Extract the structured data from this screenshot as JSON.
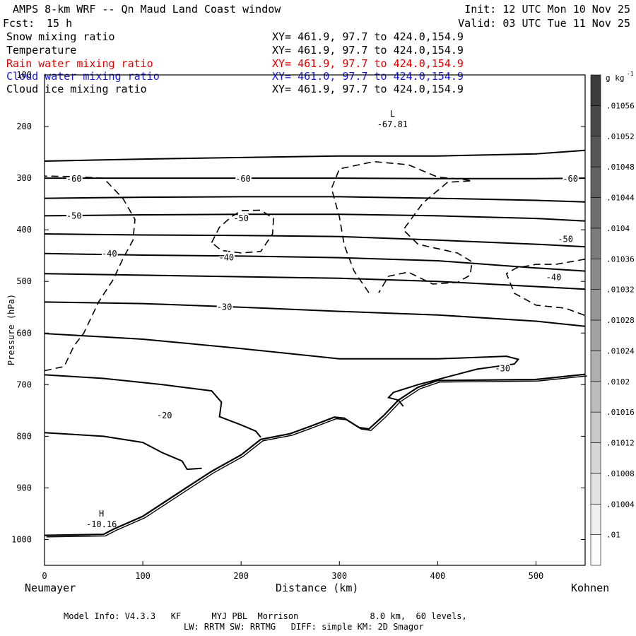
{
  "header": {
    "title": "AMPS 8-km WRF -- Qn Maud Land Coast window",
    "fcst_label": "Fcst:",
    "fcst_value": "15 h",
    "init": "Init: 12 UTC Mon 10 Nov 25",
    "valid": "Valid: 03 UTC Tue 11 Nov 25"
  },
  "fields": [
    {
      "name": "Snow mixing ratio",
      "xy": "XY= 461.9, 97.7 to 424.0,154.9",
      "color": "#000000"
    },
    {
      "name": "Temperature",
      "xy": "XY= 461.9, 97.7 to 424.0,154.9",
      "color": "#000000"
    },
    {
      "name": "Rain water mixing ratio",
      "xy": "XY= 461.9, 97.7 to 424.0,154.9",
      "color": "#e00000"
    },
    {
      "name": "Cloud water mixing ratio",
      "xy": "XY= 461.0, 97.7 to 424.0,154.9",
      "color": "#1a1adc"
    },
    {
      "name": "Cloud ice mixing ratio",
      "xy": "XY= 461.9, 97.7 to 424.0,154.9",
      "color": "#000000"
    }
  ],
  "footer": {
    "line1": "Model Info: V4.3.3   KF      MYJ PBL  Morrison              8.0 km,  60 levels,",
    "line2": "LW: RRTM SW: RRTMG   DIFF: simple KM: 2D Smagor"
  },
  "chart_data": {
    "type": "line",
    "xlabel": "Distance (km)",
    "ylabel": "Pressure (hPa)",
    "xlim": [
      0,
      550
    ],
    "ylim": [
      1050,
      100
    ],
    "x_ticks": [
      0,
      100,
      200,
      300,
      400,
      500
    ],
    "y_ticks": [
      100,
      200,
      300,
      400,
      500,
      600,
      700,
      800,
      900,
      1000
    ],
    "x_left_label": "Neumayer",
    "x_right_label": "Kohnen",
    "colorbar": {
      "unit": "g kg",
      "unit_exp": "-1",
      "labels": [
        ".01",
        ".01004",
        ".01008",
        ".01012",
        ".01016",
        ".0102",
        ".01024",
        ".01028",
        ".01032",
        ".01036",
        ".0104",
        ".01044",
        ".01048",
        ".01052",
        ".01056"
      ]
    },
    "temperature_contours": [
      {
        "level": -60,
        "points": [
          [
            0,
            267
          ],
          [
            100,
            263
          ],
          [
            200,
            260
          ],
          [
            300,
            257
          ],
          [
            400,
            257
          ],
          [
            500,
            253
          ],
          [
            550,
            246
          ]
        ]
      },
      {
        "level": -60,
        "points": [
          [
            0,
            300
          ],
          [
            100,
            300
          ],
          [
            200,
            300
          ],
          [
            300,
            300
          ],
          [
            400,
            301
          ],
          [
            500,
            301
          ],
          [
            550,
            300
          ]
        ]
      },
      {
        "level": -60,
        "points": [
          [
            0,
            339
          ],
          [
            100,
            337
          ],
          [
            200,
            336
          ],
          [
            300,
            336
          ],
          [
            400,
            339
          ],
          [
            500,
            343
          ],
          [
            550,
            346
          ]
        ]
      },
      {
        "level": -50,
        "points": [
          [
            0,
            373
          ],
          [
            100,
            371
          ],
          [
            200,
            370
          ],
          [
            300,
            370
          ],
          [
            400,
            373
          ],
          [
            500,
            378
          ],
          [
            550,
            383
          ]
        ]
      },
      {
        "level": -50,
        "points": [
          [
            0,
            408
          ],
          [
            100,
            410
          ],
          [
            200,
            411
          ],
          [
            300,
            413
          ],
          [
            400,
            420
          ],
          [
            500,
            428
          ],
          [
            550,
            433
          ]
        ]
      },
      {
        "level": -40,
        "points": [
          [
            0,
            446
          ],
          [
            100,
            449
          ],
          [
            200,
            451
          ],
          [
            300,
            454
          ],
          [
            400,
            460
          ],
          [
            500,
            474
          ],
          [
            550,
            480
          ]
        ]
      },
      {
        "level": -40,
        "points": [
          [
            0,
            485
          ],
          [
            100,
            488
          ],
          [
            200,
            491
          ],
          [
            300,
            494
          ],
          [
            400,
            500
          ],
          [
            500,
            510
          ],
          [
            550,
            515
          ]
        ]
      },
      {
        "level": -30,
        "points": [
          [
            0,
            540
          ],
          [
            100,
            543
          ],
          [
            200,
            550
          ],
          [
            300,
            558
          ],
          [
            400,
            565
          ],
          [
            500,
            577
          ],
          [
            550,
            587
          ]
        ]
      },
      {
        "level": -30,
        "points": [
          [
            0,
            601
          ],
          [
            100,
            612
          ],
          [
            200,
            630
          ],
          [
            300,
            650
          ],
          [
            400,
            650
          ],
          [
            470,
            645
          ],
          [
            482,
            651
          ],
          [
            478,
            660
          ],
          [
            440,
            670
          ],
          [
            380,
            700
          ],
          [
            355,
            715
          ],
          [
            350,
            725
          ],
          [
            360,
            730
          ],
          [
            365,
            742
          ]
        ]
      },
      {
        "level": -20,
        "points": [
          [
            0,
            681
          ],
          [
            60,
            688
          ],
          [
            120,
            700
          ],
          [
            170,
            712
          ],
          [
            180,
            734
          ],
          [
            178,
            762
          ],
          [
            200,
            778
          ],
          [
            215,
            790
          ],
          [
            220,
            802
          ]
        ]
      },
      {
        "level": -20,
        "points": [
          [
            0,
            793
          ],
          [
            60,
            800
          ],
          [
            100,
            812
          ],
          [
            120,
            832
          ],
          [
            140,
            848
          ],
          [
            145,
            864
          ],
          [
            160,
            862
          ]
        ]
      }
    ],
    "terrain": [
      [
        0,
        992
      ],
      [
        60,
        990
      ],
      [
        70,
        980
      ],
      [
        100,
        955
      ],
      [
        140,
        905
      ],
      [
        170,
        868
      ],
      [
        200,
        836
      ],
      [
        220,
        806
      ],
      [
        250,
        795
      ],
      [
        270,
        781
      ],
      [
        295,
        763
      ],
      [
        305,
        765
      ],
      [
        320,
        783
      ],
      [
        330,
        786
      ],
      [
        345,
        760
      ],
      [
        360,
        730
      ],
      [
        380,
        705
      ],
      [
        400,
        692
      ],
      [
        500,
        690
      ],
      [
        550,
        680
      ]
    ],
    "snow_contours": [
      [
        [
          0,
          673
        ],
        [
          20,
          665
        ],
        [
          30,
          625
        ],
        [
          40,
          600
        ],
        [
          55,
          540
        ],
        [
          70,
          496
        ],
        [
          80,
          455
        ],
        [
          90,
          420
        ],
        [
          92,
          380
        ],
        [
          80,
          340
        ],
        [
          60,
          300
        ],
        [
          30,
          297
        ],
        [
          0,
          296
        ]
      ],
      [
        [
          170,
          425
        ],
        [
          178,
          395
        ],
        [
          190,
          375
        ],
        [
          200,
          363
        ],
        [
          220,
          362
        ],
        [
          233,
          378
        ],
        [
          232,
          408
        ],
        [
          220,
          442
        ],
        [
          200,
          445
        ],
        [
          180,
          440
        ],
        [
          170,
          425
        ]
      ],
      [
        [
          330,
          522
        ],
        [
          315,
          480
        ],
        [
          305,
          430
        ],
        [
          300,
          375
        ],
        [
          292,
          320
        ],
        [
          300,
          282
        ],
        [
          335,
          268
        ],
        [
          370,
          274
        ],
        [
          400,
          298
        ],
        [
          425,
          302
        ],
        [
          435,
          305
        ],
        [
          410,
          308
        ],
        [
          385,
          348
        ],
        [
          365,
          400
        ],
        [
          380,
          428
        ],
        [
          420,
          445
        ],
        [
          435,
          462
        ],
        [
          433,
          488
        ],
        [
          420,
          502
        ],
        [
          395,
          505
        ],
        [
          370,
          482
        ],
        [
          350,
          490
        ],
        [
          340,
          522
        ]
      ],
      [
        [
          550,
          457
        ],
        [
          520,
          467
        ],
        [
          500,
          467
        ],
        [
          480,
          474
        ],
        [
          470,
          485
        ],
        [
          478,
          523
        ],
        [
          500,
          546
        ],
        [
          530,
          552
        ],
        [
          550,
          566
        ]
      ]
    ],
    "annotations": [
      {
        "text": "L",
        "value": "-67.81",
        "x": 354,
        "y": 200
      },
      {
        "text": "H",
        "value": "-10.16",
        "x": 58,
        "y": 975
      }
    ],
    "contour_labels": [
      {
        "text": "-60",
        "x": 30,
        "y": 301
      },
      {
        "text": "-60",
        "x": 202,
        "y": 301
      },
      {
        "text": "-60",
        "x": 535,
        "y": 301
      },
      {
        "text": "-50",
        "x": 30,
        "y": 373
      },
      {
        "text": "-50",
        "x": 200,
        "y": 378
      },
      {
        "text": "-50",
        "x": 530,
        "y": 418
      },
      {
        "text": "-40",
        "x": 66,
        "y": 446
      },
      {
        "text": "-40",
        "x": 185,
        "y": 454
      },
      {
        "text": "-40",
        "x": 518,
        "y": 492
      },
      {
        "text": "-30",
        "x": 183,
        "y": 550
      },
      {
        "text": "-30",
        "x": 466,
        "y": 669
      },
      {
        "text": "-20",
        "x": 122,
        "y": 760
      }
    ]
  }
}
